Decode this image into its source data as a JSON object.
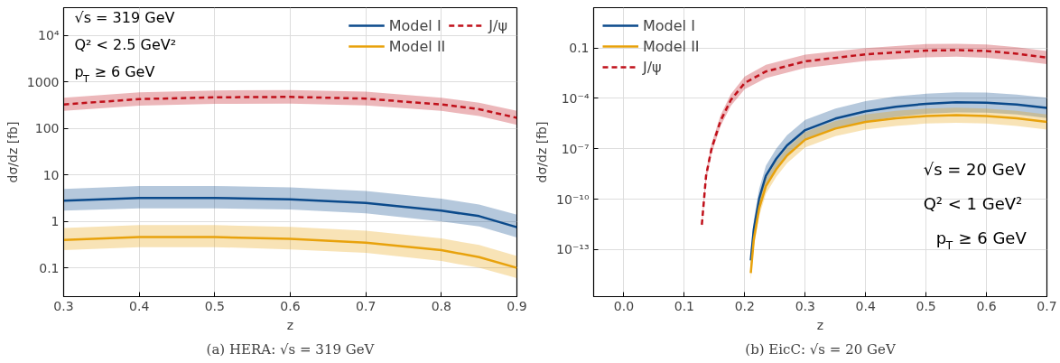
{
  "chart_data": [
    {
      "type": "line",
      "title": "(a) HERA: √s = 319 GeV",
      "xlabel": "z",
      "ylabel": "dσ/dz [fb]",
      "log": "y",
      "grid": true,
      "legend": "top right",
      "xlim": [
        0.3,
        0.9
      ],
      "xticks": [
        0.3,
        0.4,
        0.5,
        0.6,
        0.7,
        0.8,
        0.9
      ],
      "ylim": [
        0.024,
        40000
      ],
      "yticks": [
        0.1,
        1,
        10,
        100,
        1000,
        {
          "value": 10000,
          "label": "10⁴"
        }
      ],
      "annotations": [
        "√s = 319 GeV",
        "Q² < 2.5 GeV²",
        "p$_{T}$ ≥ 6 GeV"
      ],
      "series": [
        {
          "name": "Model I",
          "color": "#0b4a8b",
          "line_style": "solid",
          "x": [
            0.3,
            0.4,
            0.5,
            0.6,
            0.7,
            0.8,
            0.85,
            0.9
          ],
          "values": [
            2.8,
            3.2,
            3.2,
            3.0,
            2.5,
            1.7,
            1.3,
            0.75
          ],
          "upper": [
            5.0,
            5.8,
            5.8,
            5.4,
            4.5,
            3.1,
            2.3,
            1.4
          ],
          "lower": [
            1.7,
            1.9,
            1.9,
            1.8,
            1.5,
            1.0,
            0.78,
            0.45
          ]
        },
        {
          "name": "Model II",
          "color": "#e8a20c",
          "line_style": "solid",
          "x": [
            0.3,
            0.4,
            0.5,
            0.6,
            0.7,
            0.8,
            0.85,
            0.9
          ],
          "values": [
            0.4,
            0.46,
            0.46,
            0.42,
            0.35,
            0.24,
            0.17,
            0.1
          ],
          "upper": [
            0.72,
            0.83,
            0.83,
            0.76,
            0.63,
            0.43,
            0.31,
            0.18
          ],
          "lower": [
            0.24,
            0.28,
            0.28,
            0.25,
            0.21,
            0.14,
            0.1,
            0.06
          ]
        },
        {
          "name": "J/ψ",
          "color": "#c0101a",
          "line_style": "dashed",
          "x": [
            0.3,
            0.4,
            0.5,
            0.6,
            0.7,
            0.8,
            0.85,
            0.9
          ],
          "values": [
            330,
            430,
            470,
            480,
            440,
            330,
            260,
            170
          ],
          "upper": [
            460,
            600,
            660,
            670,
            620,
            460,
            360,
            240
          ],
          "lower": [
            240,
            310,
            340,
            345,
            315,
            240,
            185,
            120
          ]
        }
      ]
    },
    {
      "type": "line",
      "title": "(b) EicC: √s = 20 GeV",
      "xlabel": "z",
      "ylabel": "dσ/dz [fb]",
      "log": "y",
      "grid": true,
      "legend": "top left",
      "xlim": [
        -0.05,
        0.7
      ],
      "xticks": [
        {
          "value": 0,
          "label": "0.0"
        },
        0.1,
        0.2,
        0.3,
        0.4,
        0.5,
        0.6,
        0.7
      ],
      "ylim": [
        1.6e-16,
        25
      ],
      "yticks": [
        0.1,
        {
          "value": 0.0001,
          "label": "10⁻⁴"
        },
        {
          "value": 1e-07,
          "label": "10⁻⁷"
        },
        {
          "value": 1e-10,
          "label": "10⁻¹⁰"
        },
        {
          "value": 1e-13,
          "label": "10⁻¹³"
        }
      ],
      "annotations": [
        "√s = 20 GeV",
        "Q² < 1 GeV²",
        "p$_{T}$ ≥ 6 GeV"
      ],
      "series": [
        {
          "name": "Model I",
          "color": "#0b4a8b",
          "line_style": "solid",
          "x": [
            0.21,
            0.215,
            0.224,
            0.235,
            0.252,
            0.27,
            0.3,
            0.35,
            0.4,
            0.45,
            0.5,
            0.55,
            0.6,
            0.65,
            0.7
          ],
          "values": [
            2.3e-14,
            1.6e-12,
            1.1e-10,
            2.5e-09,
            2.5e-08,
            1.6e-07,
            1.3e-06,
            6.3e-06,
            1.7e-05,
            3.2e-05,
            4.8e-05,
            5.8e-05,
            5.5e-05,
            4.3e-05,
            2.7e-05
          ],
          "upper": [
            9e-14,
            6e-12,
            4.4e-10,
            1e-08,
            1e-07,
            6.4e-07,
            5.2e-06,
            2.5e-05,
            6.8e-05,
            0.00013,
            0.00019,
            0.00023,
            0.00022,
            0.00017,
            0.00011
          ],
          "lower": [
            6e-15,
            4e-13,
            2.8e-11,
            6e-10,
            6e-09,
            4e-08,
            3.2e-07,
            1.6e-06,
            4.2e-06,
            8e-06,
            1.2e-05,
            1.45e-05,
            1.4e-05,
            1.1e-05,
            6.8e-06
          ]
        },
        {
          "name": "Model II",
          "color": "#e8a20c",
          "line_style": "solid",
          "x": [
            0.21,
            0.215,
            0.224,
            0.235,
            0.252,
            0.27,
            0.3,
            0.35,
            0.4,
            0.45,
            0.5,
            0.55,
            0.6,
            0.65,
            0.7
          ],
          "values": [
            4e-15,
            4e-13,
            3e-11,
            6e-10,
            6e-09,
            4e-08,
            3.5e-07,
            1.6e-06,
            4e-06,
            6.6e-06,
            9e-06,
            1e-05,
            9e-06,
            6.6e-06,
            4e-06
          ],
          "upper": [
            1.1e-14,
            1.1e-12,
            8.4e-11,
            1.7e-09,
            1.7e-08,
            1.1e-07,
            1e-06,
            4.5e-06,
            1.1e-05,
            1.8e-05,
            2.5e-05,
            2.8e-05,
            2.5e-05,
            1.8e-05,
            1.1e-05
          ],
          "lower": [
            1.4e-15,
            1.4e-13,
            1e-11,
            2.1e-10,
            2.1e-09,
            1.4e-08,
            1.2e-07,
            5.6e-07,
            1.4e-06,
            2.3e-06,
            3.2e-06,
            3.5e-06,
            3.2e-06,
            2.3e-06,
            1.4e-06
          ]
        },
        {
          "name": "J/ψ",
          "color": "#c0101a",
          "line_style": "dashed",
          "x": [
            0.129,
            0.136,
            0.145,
            0.16,
            0.177,
            0.2,
            0.235,
            0.3,
            0.4,
            0.5,
            0.55,
            0.6,
            0.65,
            0.7
          ],
          "values": [
            3e-12,
            2.5e-09,
            1e-07,
            4.7e-06,
            8e-05,
            0.00083,
            0.004,
            0.016,
            0.042,
            0.07,
            0.075,
            0.066,
            0.046,
            0.027
          ],
          "upper": [
            5e-12,
            5e-09,
            2e-07,
            1e-05,
            0.00018,
            0.002,
            0.01,
            0.04,
            0.1,
            0.17,
            0.18,
            0.16,
            0.11,
            0.065
          ],
          "lower": [
            1.8e-12,
            1.2e-09,
            5e-08,
            2.2e-06,
            3.6e-05,
            0.00035,
            0.0016,
            0.0064,
            0.017,
            0.028,
            0.03,
            0.026,
            0.018,
            0.011
          ]
        }
      ]
    }
  ]
}
